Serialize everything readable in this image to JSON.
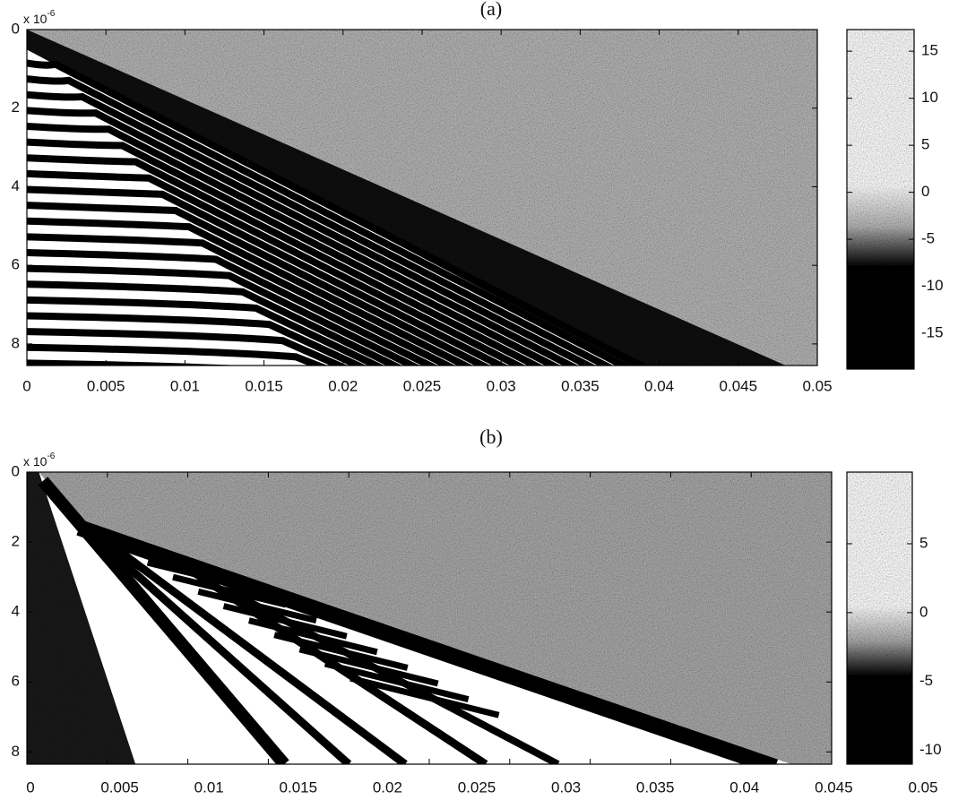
{
  "chart_data": [
    {
      "type": "heatmap",
      "title": "(a)",
      "y_multiplier": "x 10",
      "y_exponent": "-6",
      "xlim": [
        0,
        0.05
      ],
      "xticks": [
        0,
        0.005,
        0.01,
        0.015,
        0.02,
        0.025,
        0.03,
        0.035,
        0.04,
        0.045,
        0.05
      ],
      "ylim": [
        0,
        8.55
      ],
      "yticks": [
        0,
        2,
        4,
        6,
        8
      ],
      "y_reversed": true,
      "colormap": [
        "#000000",
        "#b4b4b4",
        "#ffffff"
      ],
      "clim": [
        -18.8,
        17.3
      ],
      "cticks": [
        -15,
        -10,
        -5,
        0,
        5,
        10,
        15
      ]
    },
    {
      "type": "heatmap",
      "title": "(b)",
      "y_multiplier": "x 10",
      "y_exponent": "-6",
      "xlim": [
        0,
        0.05
      ],
      "xticks": [
        0,
        0.005,
        0.01,
        0.015,
        0.02,
        0.025,
        0.03,
        0.035,
        0.04,
        0.045,
        0.05
      ],
      "ylim": [
        0,
        8.35
      ],
      "yticks": [
        0,
        2,
        4,
        6,
        8
      ],
      "y_reversed": true,
      "colormap": [
        "#000000",
        "#a8a8a8",
        "#ffffff"
      ],
      "clim": [
        -11,
        10.2
      ],
      "cticks": [
        -10,
        -5,
        0,
        5
      ]
    }
  ]
}
